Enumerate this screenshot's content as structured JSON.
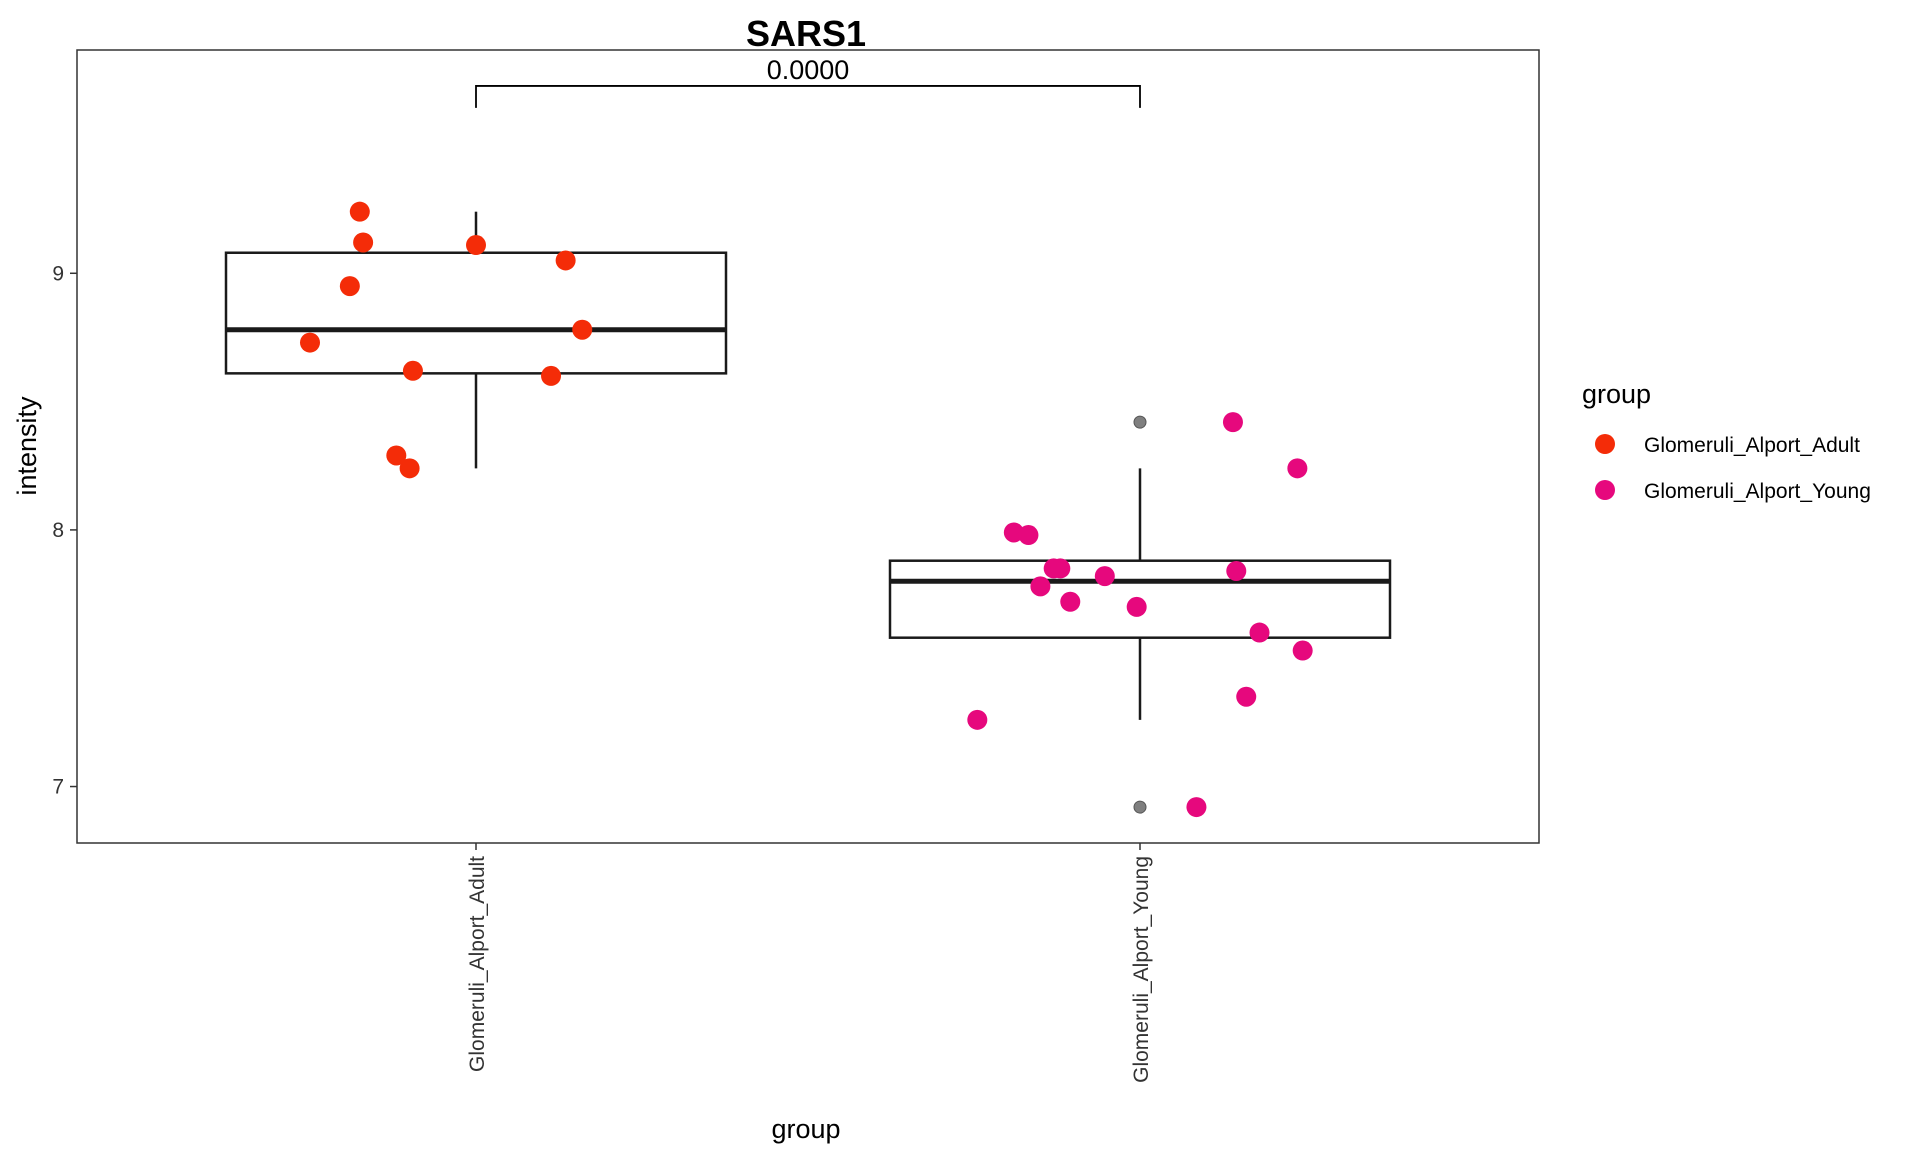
{
  "chart_data": {
    "type": "box",
    "title": "SARS1",
    "xlabel": "group",
    "ylabel": "intensity",
    "ylim": [
      6.78,
      9.87
    ],
    "yticks": [
      7,
      8,
      9
    ],
    "categories": [
      "Glomeruli_Alport_Adult",
      "Glomeruli_Alport_Young"
    ],
    "legend": {
      "title": "group",
      "placement": "right",
      "entries": [
        {
          "label": "Glomeruli_Alport_Adult",
          "color": "#F42C08"
        },
        {
          "label": "Glomeruli_Alport_Young",
          "color": "#E6087D"
        }
      ]
    },
    "comparison": {
      "label": "0.0000",
      "between": [
        "Glomeruli_Alport_Adult",
        "Glomeruli_Alport_Young"
      ],
      "y": 9.73
    },
    "boxes": [
      {
        "category": "Glomeruli_Alport_Adult",
        "q1": 8.61,
        "median": 8.78,
        "q3": 9.08,
        "whisker_low": 8.24,
        "whisker_high": 9.24,
        "outliers": []
      },
      {
        "category": "Glomeruli_Alport_Young",
        "q1": 7.58,
        "median": 7.8,
        "q3": 7.88,
        "whisker_low": 7.26,
        "whisker_high": 8.24,
        "outliers": [
          8.42,
          6.92
        ]
      }
    ],
    "points": [
      {
        "category": "Glomeruli_Alport_Adult",
        "jitter": -0.175,
        "y": 9.24
      },
      {
        "category": "Glomeruli_Alport_Adult",
        "jitter": -0.17,
        "y": 9.12
      },
      {
        "category": "Glomeruli_Alport_Adult",
        "jitter": 0.0,
        "y": 9.11
      },
      {
        "category": "Glomeruli_Alport_Adult",
        "jitter": 0.135,
        "y": 9.05
      },
      {
        "category": "Glomeruli_Alport_Adult",
        "jitter": -0.19,
        "y": 8.95
      },
      {
        "category": "Glomeruli_Alport_Adult",
        "jitter": 0.16,
        "y": 8.78
      },
      {
        "category": "Glomeruli_Alport_Adult",
        "jitter": -0.25,
        "y": 8.73
      },
      {
        "category": "Glomeruli_Alport_Adult",
        "jitter": -0.095,
        "y": 8.62
      },
      {
        "category": "Glomeruli_Alport_Adult",
        "jitter": 0.113,
        "y": 8.6
      },
      {
        "category": "Glomeruli_Alport_Adult",
        "jitter": -0.12,
        "y": 8.29
      },
      {
        "category": "Glomeruli_Alport_Adult",
        "jitter": -0.1,
        "y": 8.24
      },
      {
        "category": "Glomeruli_Alport_Young",
        "jitter": 0.14,
        "y": 8.42
      },
      {
        "category": "Glomeruli_Alport_Young",
        "jitter": 0.237,
        "y": 8.24
      },
      {
        "category": "Glomeruli_Alport_Young",
        "jitter": -0.19,
        "y": 7.99
      },
      {
        "category": "Glomeruli_Alport_Young",
        "jitter": -0.168,
        "y": 7.98
      },
      {
        "category": "Glomeruli_Alport_Young",
        "jitter": -0.13,
        "y": 7.85
      },
      {
        "category": "Glomeruli_Alport_Young",
        "jitter": -0.12,
        "y": 7.85
      },
      {
        "category": "Glomeruli_Alport_Young",
        "jitter": 0.145,
        "y": 7.84
      },
      {
        "category": "Glomeruli_Alport_Young",
        "jitter": -0.053,
        "y": 7.82
      },
      {
        "category": "Glomeruli_Alport_Young",
        "jitter": -0.15,
        "y": 7.78
      },
      {
        "category": "Glomeruli_Alport_Young",
        "jitter": -0.105,
        "y": 7.72
      },
      {
        "category": "Glomeruli_Alport_Young",
        "jitter": -0.005,
        "y": 7.7
      },
      {
        "category": "Glomeruli_Alport_Young",
        "jitter": 0.18,
        "y": 7.6
      },
      {
        "category": "Glomeruli_Alport_Young",
        "jitter": 0.245,
        "y": 7.53
      },
      {
        "category": "Glomeruli_Alport_Young",
        "jitter": 0.16,
        "y": 7.35
      },
      {
        "category": "Glomeruli_Alport_Young",
        "jitter": -0.245,
        "y": 7.26
      },
      {
        "category": "Glomeruli_Alport_Young",
        "jitter": 0.085,
        "y": 6.92
      }
    ],
    "grid": false,
    "colors": {
      "panel_border": "#333333",
      "box_line": "#1a1a1a",
      "outlier": "#7f7f7f"
    }
  }
}
